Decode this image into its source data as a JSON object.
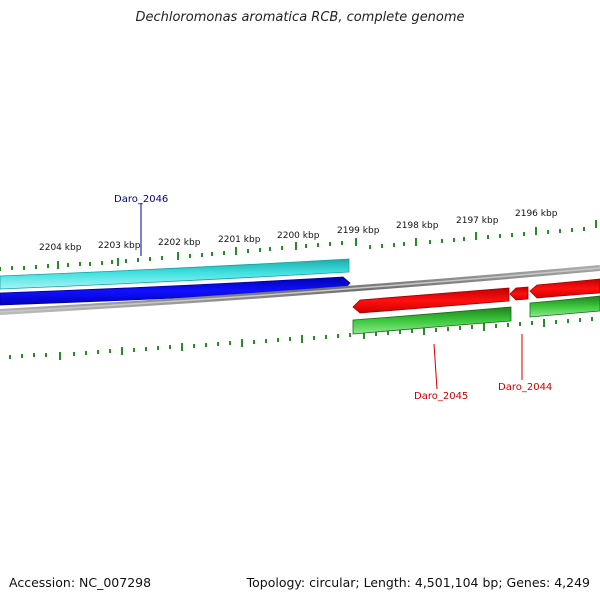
{
  "title": "Dechloromonas aromatica RCB, complete genome",
  "accession_text": "Accession: NC_007298",
  "summary_text": "Topology: circular; Length: 4,501,104 bp; Genes: 4,249",
  "colors": {
    "tick": "#2a8a2a",
    "label_blue": "#00008b",
    "label_red": "#cc0000",
    "cyan_feature": "#25c8c8",
    "blue_feature": "#0000e6",
    "red_feature": "#ee0000",
    "green_feature": "#2fb52f",
    "genome_line": "#8a8a8a"
  },
  "kbp_labels": [
    "2204 kbp",
    "2203 kbp",
    "2202 kbp",
    "2201 kbp",
    "2200 kbp",
    "2199 kbp",
    "2198 kbp",
    "2197 kbp",
    "2196 kbp"
  ],
  "genes": {
    "daro_2046": "Daro_2046",
    "daro_2045": "Daro_2045",
    "daro_2044": "Daro_2044"
  }
}
